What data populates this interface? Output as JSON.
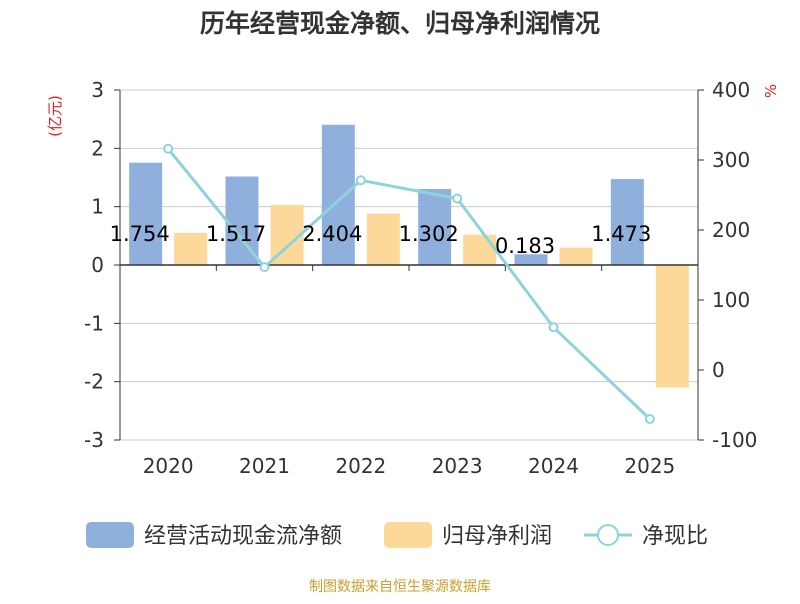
{
  "chart_data": {
    "type": "bar",
    "title": "历年经营现金净额、归母净利润情况",
    "categories": [
      "2020",
      "2021",
      "2022",
      "2023",
      "2024",
      "2025"
    ],
    "y_left": {
      "unit": "(亿元)",
      "range": [
        -3,
        3
      ],
      "ticks": [
        3,
        2,
        1,
        0,
        -1,
        -2,
        -3
      ]
    },
    "y_right": {
      "unit": "%",
      "range": [
        -100,
        400
      ],
      "ticks": [
        400,
        300,
        200,
        100,
        0,
        -100
      ]
    },
    "series": [
      {
        "name": "经营活动现金流净额",
        "type": "bar",
        "axis": "left",
        "color": "#8fb0dc",
        "values": [
          1.754,
          1.517,
          2.404,
          1.302,
          0.183,
          1.473
        ],
        "labels": [
          "1.754",
          "1.517",
          "2.404",
          "1.302",
          "0.183",
          "1.473"
        ]
      },
      {
        "name": "归母净利润",
        "type": "bar",
        "axis": "left",
        "color": "#fdd999",
        "values": [
          0.55,
          1.03,
          0.88,
          0.52,
          0.3,
          -2.1
        ]
      },
      {
        "name": "净现比",
        "type": "line",
        "axis": "right",
        "color": "#8dd4da",
        "values": [
          316,
          147,
          271,
          245,
          61,
          -70
        ]
      }
    ],
    "grid": true,
    "legend": "bottom"
  },
  "footer": {
    "source": "制图数据来自恒生聚源数据库"
  },
  "colors": {
    "title": "#333333",
    "axis_unit": "#e02020",
    "text": "#333333",
    "grid": "#cccccc",
    "source": "#c8a030"
  }
}
